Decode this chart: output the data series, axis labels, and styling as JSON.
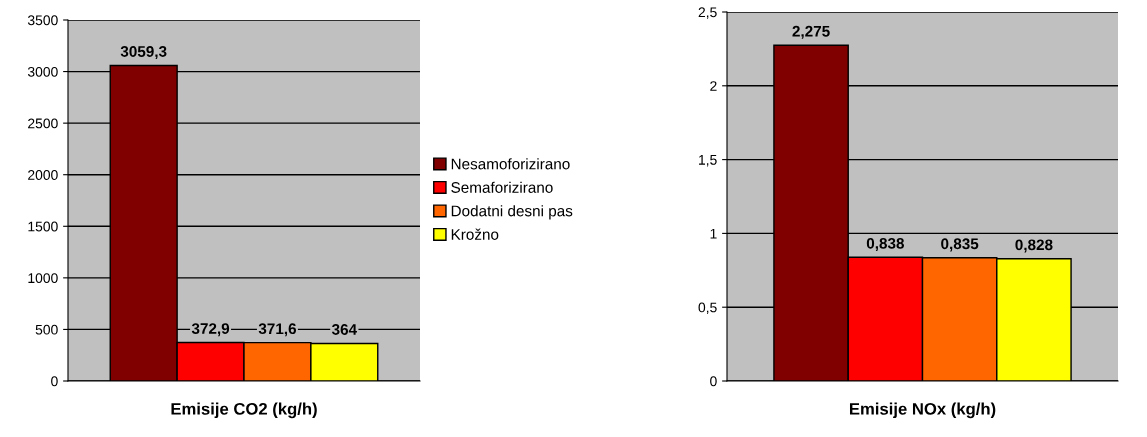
{
  "chart_data": [
    {
      "type": "bar",
      "xlabel": "Emisije CO2 (kg/h)",
      "categories": [
        null
      ],
      "ylim": [
        0,
        3500
      ],
      "yticks": [
        0,
        500,
        1000,
        1500,
        2000,
        2500,
        3000,
        3500
      ],
      "grid": "y",
      "legend": "right",
      "series": [
        {
          "name": "Nesamoforizirano",
          "color": "#800000",
          "values": [
            3059.3
          ],
          "value_labels": [
            "3059,3"
          ]
        },
        {
          "name": "Semaforizirano",
          "color": "#ff0000",
          "values": [
            372.9
          ],
          "value_labels": [
            "372,9"
          ]
        },
        {
          "name": "Dodatni desni pas",
          "color": "#ff6600",
          "values": [
            371.6
          ],
          "value_labels": [
            "371,6"
          ]
        },
        {
          "name": "Krožno",
          "color": "#ffff00",
          "values": [
            364
          ],
          "value_labels": [
            "364"
          ]
        }
      ]
    },
    {
      "type": "bar",
      "xlabel": "Emisije NOx (kg/h)",
      "categories": [
        null
      ],
      "ylim": [
        0,
        2.5
      ],
      "yticks": [
        0,
        {
          "value": 0.5,
          "label": "0,5"
        },
        1,
        {
          "value": 1.5,
          "label": "1,5"
        },
        2,
        {
          "value": 2.5,
          "label": "2,5"
        }
      ],
      "grid": "y",
      "series": [
        {
          "color": "#800000",
          "values": [
            2.275
          ],
          "value_labels": [
            "2,275"
          ]
        },
        {
          "color": "#ff0000",
          "values": [
            0.838
          ],
          "value_labels": [
            "0,838"
          ]
        },
        {
          "color": "#ff6600",
          "values": [
            0.835
          ],
          "value_labels": [
            "0,835"
          ]
        },
        {
          "color": "#ffff00",
          "values": [
            0.828
          ],
          "value_labels": [
            "0,828"
          ]
        }
      ]
    }
  ]
}
